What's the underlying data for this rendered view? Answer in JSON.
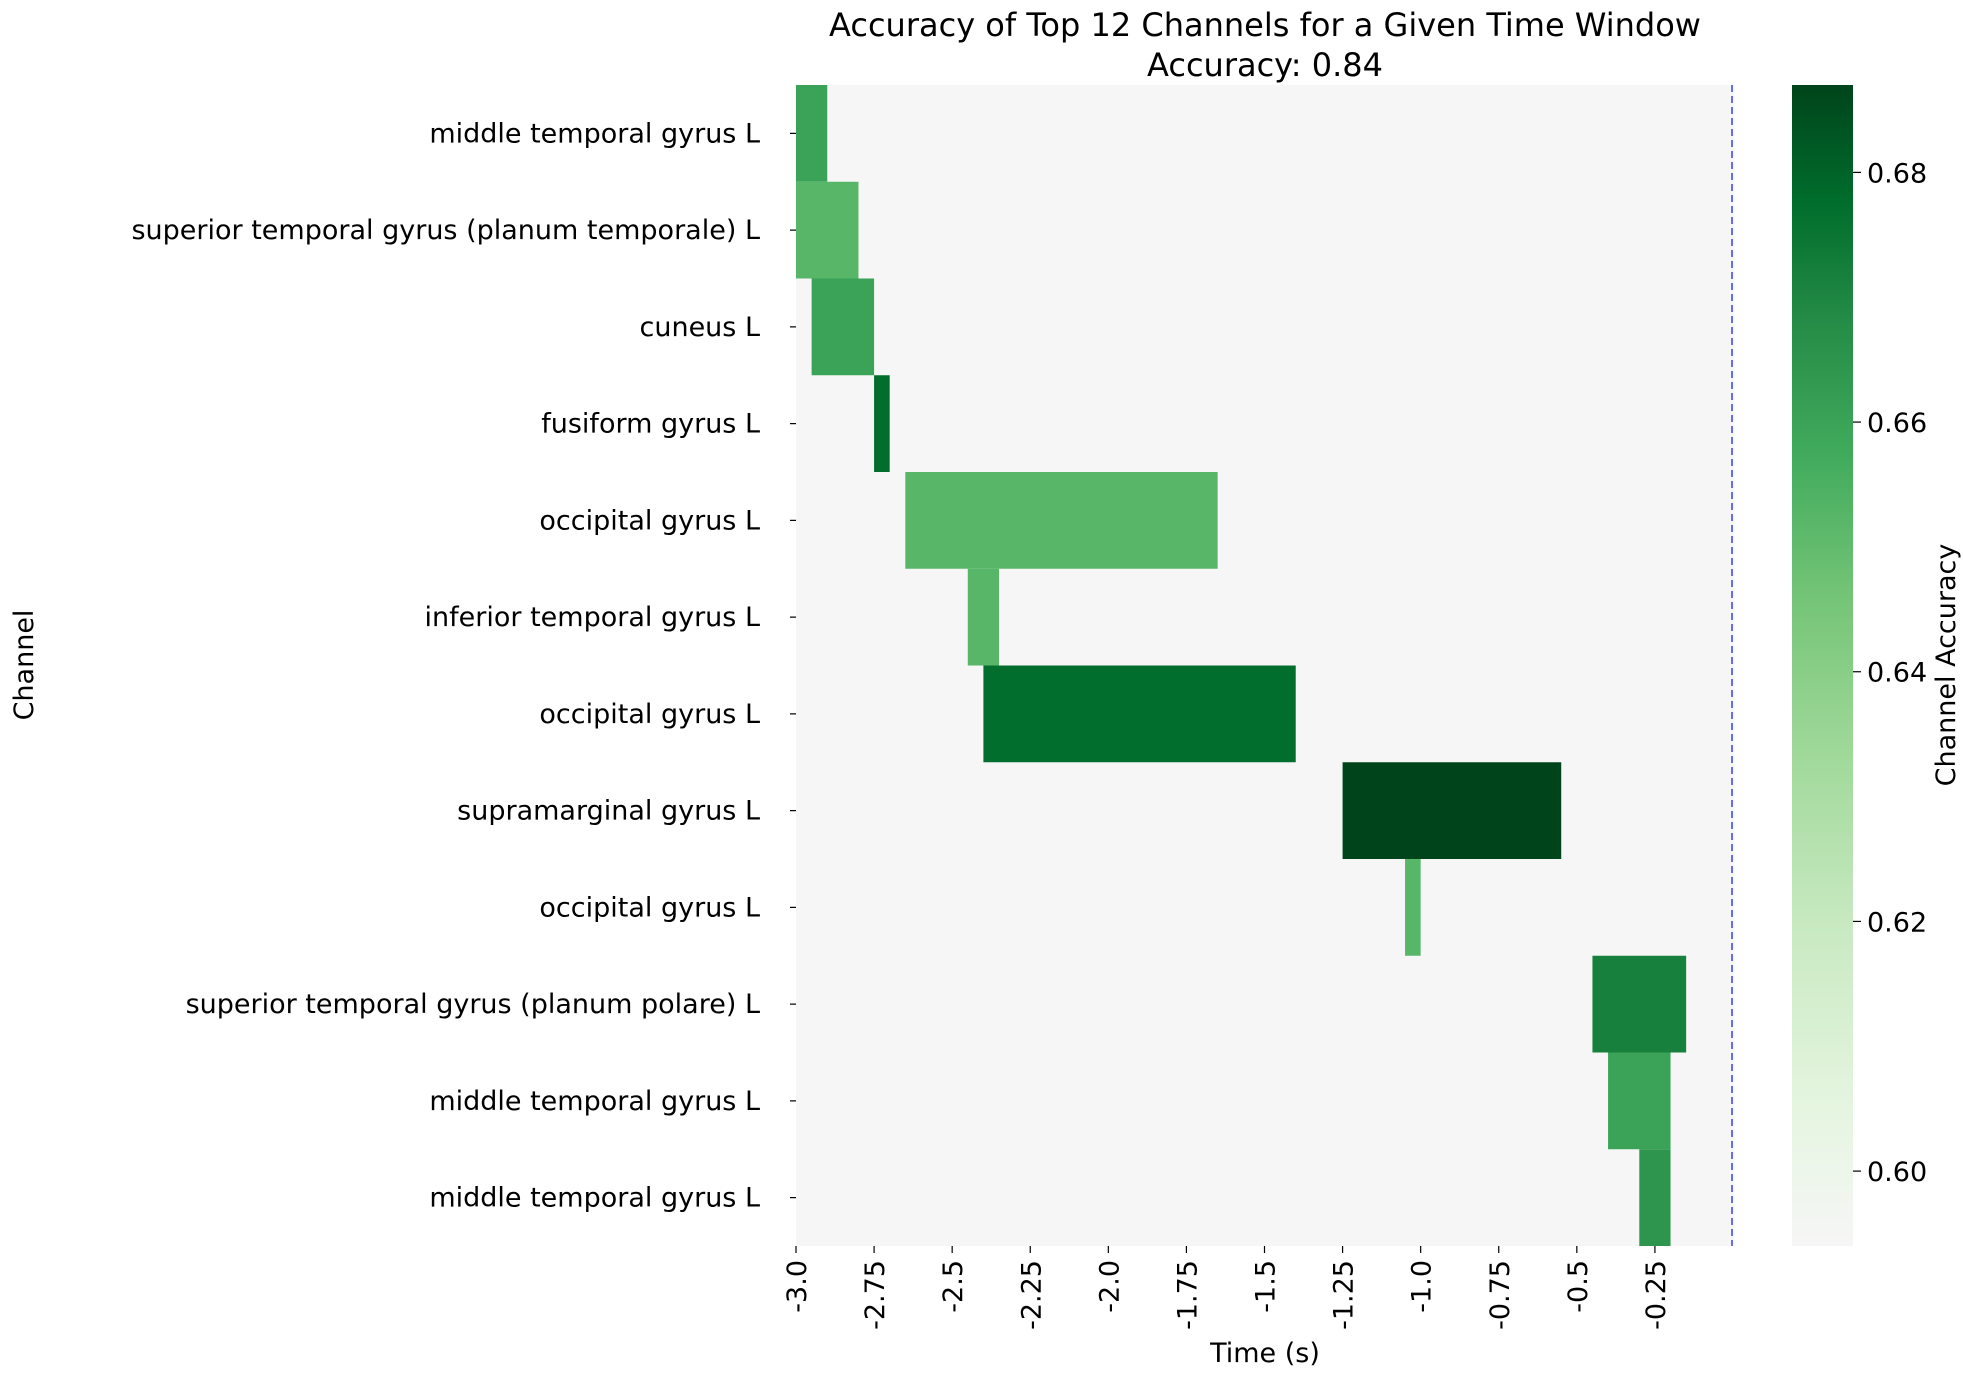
{
  "chart_data": {
    "type": "heatmap",
    "title": "Accuracy of Top 12 Channels for a Given Time Window",
    "subtitle": "Accuracy: 0.84",
    "xlabel": "Time (s)",
    "ylabel": "Channel",
    "colorbar_label": "Channel Accuracy",
    "x_ticks": [
      "-3.0",
      "-2.75",
      "-2.5",
      "-2.25",
      "-2.0",
      "-1.75",
      "-1.5",
      "-1.25",
      "-1.0",
      "-0.75",
      "-0.5",
      "-0.25"
    ],
    "x_range": [
      -3.0,
      0.0
    ],
    "colorbar_ticks": [
      "0.60",
      "0.62",
      "0.64",
      "0.66",
      "0.68"
    ],
    "colorbar_range": [
      0.594,
      0.687
    ],
    "background_color": "#f6f6f6",
    "reference_line": {
      "x": 0.0,
      "color": "#3344dd",
      "style": "dashed"
    },
    "colormap": [
      "#f7fcf5",
      "#e5f5e0",
      "#c7e9c0",
      "#a1d99b",
      "#74c476",
      "#41ab5d",
      "#238b45",
      "#006d2c",
      "#00441b"
    ],
    "channels": [
      "middle temporal gyrus L",
      "superior temporal gyrus (planum temporale) L",
      "cuneus L",
      "fusiform gyrus L",
      "occipital gyrus L",
      "inferior temporal gyrus L",
      "occipital gyrus L",
      "supramarginal gyrus L",
      "occipital gyrus L",
      "superior temporal gyrus (planum polare) L",
      "middle temporal gyrus L",
      "middle temporal gyrus L"
    ],
    "windows": [
      {
        "channel_index": 0,
        "start": -3.0,
        "end": -2.9,
        "accuracy": 0.655
      },
      {
        "channel_index": 1,
        "start": -3.0,
        "end": -2.8,
        "accuracy": 0.647
      },
      {
        "channel_index": 2,
        "start": -2.95,
        "end": -2.75,
        "accuracy": 0.655
      },
      {
        "channel_index": 3,
        "start": -2.75,
        "end": -2.7,
        "accuracy": 0.675
      },
      {
        "channel_index": 4,
        "start": -2.65,
        "end": -1.65,
        "accuracy": 0.647
      },
      {
        "channel_index": 5,
        "start": -2.45,
        "end": -2.35,
        "accuracy": 0.647
      },
      {
        "channel_index": 6,
        "start": -2.4,
        "end": -1.4,
        "accuracy": 0.675
      },
      {
        "channel_index": 7,
        "start": -1.25,
        "end": -0.55,
        "accuracy": 0.687
      },
      {
        "channel_index": 8,
        "start": -1.05,
        "end": -1.0,
        "accuracy": 0.647
      },
      {
        "channel_index": 9,
        "start": -0.45,
        "end": -0.15,
        "accuracy": 0.668
      },
      {
        "channel_index": 10,
        "start": -0.4,
        "end": -0.2,
        "accuracy": 0.655
      },
      {
        "channel_index": 11,
        "start": -0.3,
        "end": -0.2,
        "accuracy": 0.66
      }
    ]
  }
}
